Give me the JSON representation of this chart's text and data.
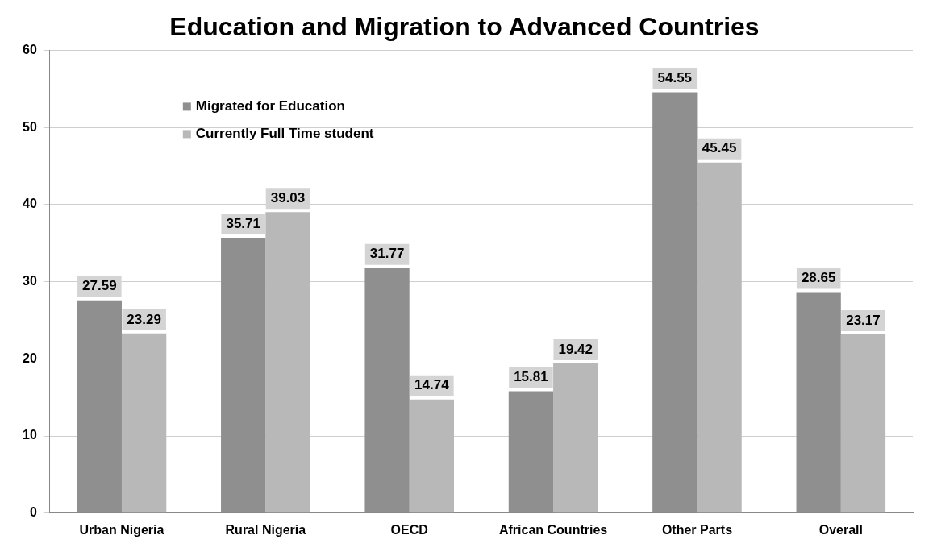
{
  "chart_data": {
    "type": "bar",
    "title": "Education and Migration to Advanced Countries",
    "categories": [
      "Urban Nigeria",
      "Rural Nigeria",
      "OECD",
      "African Countries",
      "Other Parts",
      "Overall"
    ],
    "series": [
      {
        "name": "Migrated for Education",
        "color": "#8f8f8f",
        "values": [
          27.59,
          35.71,
          31.77,
          15.81,
          54.55,
          28.65
        ]
      },
      {
        "name": "Currently Full Time student",
        "color": "#b8b8b8",
        "values": [
          23.29,
          39.03,
          14.74,
          19.42,
          45.45,
          23.17
        ]
      }
    ],
    "ylim": [
      0,
      60
    ],
    "yticks": [
      0,
      10,
      20,
      30,
      40,
      50,
      60
    ],
    "grid": "y",
    "legend": "top left",
    "data_labels": true
  }
}
